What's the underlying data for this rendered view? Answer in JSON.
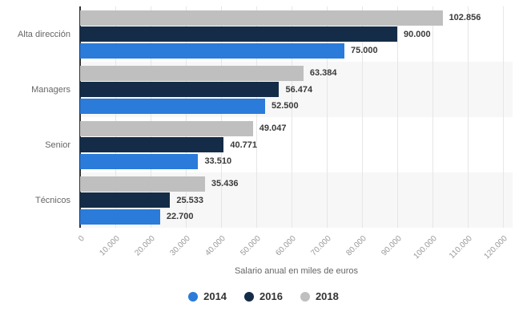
{
  "chart_data": {
    "type": "bar",
    "orientation": "horizontal",
    "title": "",
    "xlabel": "Salario anual en miles de euros",
    "ylabel": "",
    "xlim": [
      0,
      120000
    ],
    "grid": true,
    "legend_position": "bottom",
    "categories": [
      "Alta dirección",
      "Managers",
      "Senior",
      "Técnicos"
    ],
    "series": [
      {
        "name": "2014",
        "color": "#2b7bda",
        "values": [
          75000,
          52500,
          33510,
          22700
        ],
        "labels": [
          "75.000",
          "52.500",
          "33.510",
          "22.700"
        ]
      },
      {
        "name": "2016",
        "color": "#142c47",
        "values": [
          90000,
          56474,
          40771,
          25533
        ],
        "labels": [
          "90.000",
          "56.474",
          "40.771",
          "25.533"
        ]
      },
      {
        "name": "2018",
        "color": "#bfbfbf",
        "values": [
          102856,
          63384,
          49047,
          35436
        ],
        "labels": [
          "102.856",
          "63.384",
          "49.047",
          "35.436"
        ]
      }
    ],
    "x_ticks": [
      {
        "value": 0,
        "label": "0"
      },
      {
        "value": 10000,
        "label": "10.000"
      },
      {
        "value": 20000,
        "label": "20.000"
      },
      {
        "value": 30000,
        "label": "30.000"
      },
      {
        "value": 40000,
        "label": "40.000"
      },
      {
        "value": 50000,
        "label": "50.000"
      },
      {
        "value": 60000,
        "label": "60.000"
      },
      {
        "value": 70000,
        "label": "70.000"
      },
      {
        "value": 80000,
        "label": "80.000"
      },
      {
        "value": 90000,
        "label": "90.000"
      },
      {
        "value": 100000,
        "label": "100.000"
      },
      {
        "value": 110000,
        "label": "110.000"
      },
      {
        "value": 120000,
        "label": "120.000"
      }
    ],
    "colors": {
      "background": "#ffffff",
      "band": "#f7f7f7",
      "grid": "#e6e6e6",
      "axis_line": "#333333",
      "category_label": "#666666",
      "value_label": "#3a3a3a",
      "tick_label": "#999999",
      "axis_title": "#666666",
      "legend_label": "#333333"
    }
  }
}
